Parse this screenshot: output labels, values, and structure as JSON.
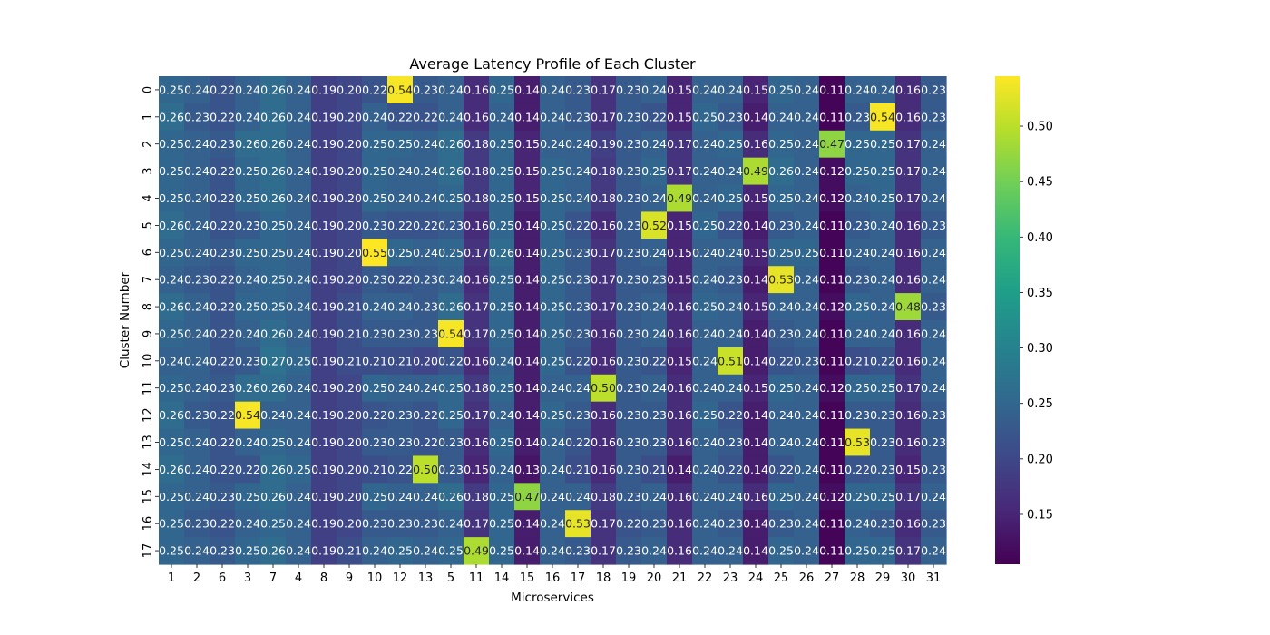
{
  "chart_data": {
    "type": "heatmap",
    "title": "Average Latency Profile of Each Cluster",
    "xlabel": "Microservices",
    "ylabel": "Cluster Number",
    "x_categories": [
      "1",
      "2",
      "6",
      "3",
      "7",
      "4",
      "8",
      "9",
      "10",
      "12",
      "13",
      "5",
      "11",
      "14",
      "15",
      "16",
      "17",
      "18",
      "19",
      "20",
      "21",
      "22",
      "23",
      "24",
      "25",
      "26",
      "27",
      "28",
      "29",
      "30",
      "31"
    ],
    "y_categories": [
      "0",
      "1",
      "2",
      "3",
      "4",
      "5",
      "6",
      "7",
      "8",
      "9",
      "10",
      "11",
      "12",
      "13",
      "14",
      "15",
      "16",
      "17"
    ],
    "values": [
      [
        "0.25",
        "0.24",
        "0.22",
        "0.24",
        "0.26",
        "0.24",
        "0.19",
        "0.20",
        "0.22",
        "0.54",
        "0.23",
        "0.24",
        "0.16",
        "0.25",
        "0.14",
        "0.24",
        "0.23",
        "0.17",
        "0.23",
        "0.24",
        "0.15",
        "0.24",
        "0.24",
        "0.15",
        "0.25",
        "0.24",
        "0.11",
        "0.24",
        "0.24",
        "0.16",
        "0.23"
      ],
      [
        "0.26",
        "0.23",
        "0.22",
        "0.24",
        "0.26",
        "0.24",
        "0.19",
        "0.20",
        "0.24",
        "0.22",
        "0.22",
        "0.24",
        "0.16",
        "0.24",
        "0.14",
        "0.24",
        "0.23",
        "0.17",
        "0.23",
        "0.22",
        "0.15",
        "0.25",
        "0.23",
        "0.14",
        "0.24",
        "0.24",
        "0.11",
        "0.23",
        "0.54",
        "0.16",
        "0.23"
      ],
      [
        "0.25",
        "0.24",
        "0.23",
        "0.26",
        "0.26",
        "0.24",
        "0.19",
        "0.20",
        "0.25",
        "0.25",
        "0.24",
        "0.26",
        "0.18",
        "0.25",
        "0.15",
        "0.24",
        "0.24",
        "0.19",
        "0.23",
        "0.24",
        "0.17",
        "0.24",
        "0.25",
        "0.16",
        "0.25",
        "0.24",
        "0.47",
        "0.25",
        "0.25",
        "0.17",
        "0.24"
      ],
      [
        "0.25",
        "0.24",
        "0.22",
        "0.25",
        "0.26",
        "0.24",
        "0.19",
        "0.20",
        "0.25",
        "0.24",
        "0.24",
        "0.26",
        "0.18",
        "0.25",
        "0.15",
        "0.25",
        "0.24",
        "0.18",
        "0.23",
        "0.25",
        "0.17",
        "0.24",
        "0.24",
        "0.49",
        "0.26",
        "0.24",
        "0.12",
        "0.25",
        "0.25",
        "0.17",
        "0.24"
      ],
      [
        "0.25",
        "0.24",
        "0.22",
        "0.25",
        "0.26",
        "0.24",
        "0.19",
        "0.20",
        "0.25",
        "0.24",
        "0.24",
        "0.25",
        "0.18",
        "0.25",
        "0.15",
        "0.25",
        "0.24",
        "0.18",
        "0.23",
        "0.24",
        "0.49",
        "0.24",
        "0.25",
        "0.15",
        "0.25",
        "0.24",
        "0.12",
        "0.24",
        "0.25",
        "0.17",
        "0.24"
      ],
      [
        "0.26",
        "0.24",
        "0.22",
        "0.23",
        "0.25",
        "0.24",
        "0.19",
        "0.20",
        "0.23",
        "0.22",
        "0.22",
        "0.23",
        "0.16",
        "0.25",
        "0.14",
        "0.25",
        "0.22",
        "0.16",
        "0.23",
        "0.52",
        "0.15",
        "0.25",
        "0.22",
        "0.14",
        "0.23",
        "0.24",
        "0.11",
        "0.23",
        "0.24",
        "0.16",
        "0.23"
      ],
      [
        "0.25",
        "0.24",
        "0.23",
        "0.25",
        "0.25",
        "0.24",
        "0.19",
        "0.20",
        "0.55",
        "0.25",
        "0.24",
        "0.25",
        "0.17",
        "0.26",
        "0.14",
        "0.25",
        "0.23",
        "0.17",
        "0.23",
        "0.24",
        "0.15",
        "0.24",
        "0.24",
        "0.15",
        "0.25",
        "0.25",
        "0.11",
        "0.24",
        "0.24",
        "0.16",
        "0.24"
      ],
      [
        "0.24",
        "0.23",
        "0.22",
        "0.24",
        "0.25",
        "0.24",
        "0.19",
        "0.20",
        "0.23",
        "0.22",
        "0.23",
        "0.24",
        "0.16",
        "0.25",
        "0.14",
        "0.25",
        "0.23",
        "0.17",
        "0.23",
        "0.23",
        "0.15",
        "0.24",
        "0.23",
        "0.14",
        "0.53",
        "0.24",
        "0.11",
        "0.23",
        "0.24",
        "0.16",
        "0.24"
      ],
      [
        "0.26",
        "0.24",
        "0.22",
        "0.25",
        "0.25",
        "0.24",
        "0.19",
        "0.21",
        "0.24",
        "0.24",
        "0.23",
        "0.26",
        "0.17",
        "0.25",
        "0.14",
        "0.25",
        "0.23",
        "0.17",
        "0.23",
        "0.24",
        "0.16",
        "0.25",
        "0.24",
        "0.15",
        "0.24",
        "0.24",
        "0.12",
        "0.25",
        "0.24",
        "0.48",
        "0.23"
      ],
      [
        "0.25",
        "0.24",
        "0.22",
        "0.24",
        "0.26",
        "0.24",
        "0.19",
        "0.21",
        "0.23",
        "0.23",
        "0.23",
        "0.54",
        "0.17",
        "0.25",
        "0.14",
        "0.25",
        "0.23",
        "0.16",
        "0.23",
        "0.24",
        "0.16",
        "0.24",
        "0.24",
        "0.14",
        "0.23",
        "0.24",
        "0.11",
        "0.24",
        "0.24",
        "0.16",
        "0.24"
      ],
      [
        "0.24",
        "0.24",
        "0.22",
        "0.23",
        "0.27",
        "0.25",
        "0.19",
        "0.21",
        "0.21",
        "0.21",
        "0.20",
        "0.22",
        "0.16",
        "0.24",
        "0.14",
        "0.25",
        "0.22",
        "0.16",
        "0.23",
        "0.22",
        "0.15",
        "0.24",
        "0.51",
        "0.14",
        "0.22",
        "0.23",
        "0.11",
        "0.21",
        "0.22",
        "0.16",
        "0.24"
      ],
      [
        "0.25",
        "0.24",
        "0.23",
        "0.26",
        "0.26",
        "0.24",
        "0.19",
        "0.20",
        "0.25",
        "0.24",
        "0.24",
        "0.25",
        "0.18",
        "0.25",
        "0.14",
        "0.24",
        "0.24",
        "0.50",
        "0.23",
        "0.24",
        "0.16",
        "0.24",
        "0.24",
        "0.15",
        "0.25",
        "0.24",
        "0.12",
        "0.25",
        "0.25",
        "0.17",
        "0.24"
      ],
      [
        "0.26",
        "0.23",
        "0.22",
        "0.54",
        "0.24",
        "0.24",
        "0.19",
        "0.20",
        "0.22",
        "0.23",
        "0.22",
        "0.25",
        "0.17",
        "0.24",
        "0.14",
        "0.25",
        "0.23",
        "0.16",
        "0.23",
        "0.23",
        "0.16",
        "0.25",
        "0.22",
        "0.14",
        "0.24",
        "0.24",
        "0.11",
        "0.23",
        "0.23",
        "0.16",
        "0.23"
      ],
      [
        "0.25",
        "0.24",
        "0.22",
        "0.24",
        "0.25",
        "0.24",
        "0.19",
        "0.20",
        "0.23",
        "0.23",
        "0.22",
        "0.23",
        "0.16",
        "0.25",
        "0.14",
        "0.24",
        "0.22",
        "0.16",
        "0.23",
        "0.23",
        "0.16",
        "0.24",
        "0.23",
        "0.14",
        "0.24",
        "0.24",
        "0.11",
        "0.53",
        "0.23",
        "0.16",
        "0.23"
      ],
      [
        "0.26",
        "0.24",
        "0.22",
        "0.22",
        "0.26",
        "0.25",
        "0.19",
        "0.20",
        "0.21",
        "0.22",
        "0.50",
        "0.23",
        "0.15",
        "0.24",
        "0.13",
        "0.24",
        "0.21",
        "0.16",
        "0.23",
        "0.21",
        "0.14",
        "0.24",
        "0.22",
        "0.14",
        "0.22",
        "0.24",
        "0.11",
        "0.22",
        "0.23",
        "0.15",
        "0.23"
      ],
      [
        "0.25",
        "0.24",
        "0.23",
        "0.25",
        "0.26",
        "0.24",
        "0.19",
        "0.20",
        "0.25",
        "0.24",
        "0.24",
        "0.26",
        "0.18",
        "0.25",
        "0.47",
        "0.24",
        "0.24",
        "0.18",
        "0.23",
        "0.24",
        "0.16",
        "0.24",
        "0.24",
        "0.16",
        "0.25",
        "0.24",
        "0.12",
        "0.25",
        "0.25",
        "0.17",
        "0.24"
      ],
      [
        "0.25",
        "0.23",
        "0.22",
        "0.24",
        "0.25",
        "0.24",
        "0.19",
        "0.20",
        "0.23",
        "0.23",
        "0.23",
        "0.24",
        "0.17",
        "0.25",
        "0.14",
        "0.24",
        "0.53",
        "0.17",
        "0.22",
        "0.23",
        "0.16",
        "0.24",
        "0.23",
        "0.14",
        "0.23",
        "0.24",
        "0.11",
        "0.24",
        "0.23",
        "0.16",
        "0.23"
      ],
      [
        "0.25",
        "0.24",
        "0.23",
        "0.25",
        "0.26",
        "0.24",
        "0.19",
        "0.21",
        "0.24",
        "0.25",
        "0.24",
        "0.25",
        "0.49",
        "0.25",
        "0.14",
        "0.24",
        "0.23",
        "0.17",
        "0.23",
        "0.24",
        "0.16",
        "0.24",
        "0.24",
        "0.14",
        "0.25",
        "0.24",
        "0.11",
        "0.25",
        "0.25",
        "0.17",
        "0.24"
      ]
    ],
    "colorbar": {
      "colormap": "viridis",
      "range": [
        0.105,
        0.545
      ],
      "ticks": [
        "0.15",
        "0.20",
        "0.25",
        "0.30",
        "0.35",
        "0.40",
        "0.45",
        "0.50"
      ]
    },
    "viridis_stops": [
      "#440154",
      "#482878",
      "#3e4989",
      "#31688e",
      "#26828e",
      "#1f9e89",
      "#35b779",
      "#6ece58",
      "#b5de2b",
      "#fde725"
    ]
  }
}
